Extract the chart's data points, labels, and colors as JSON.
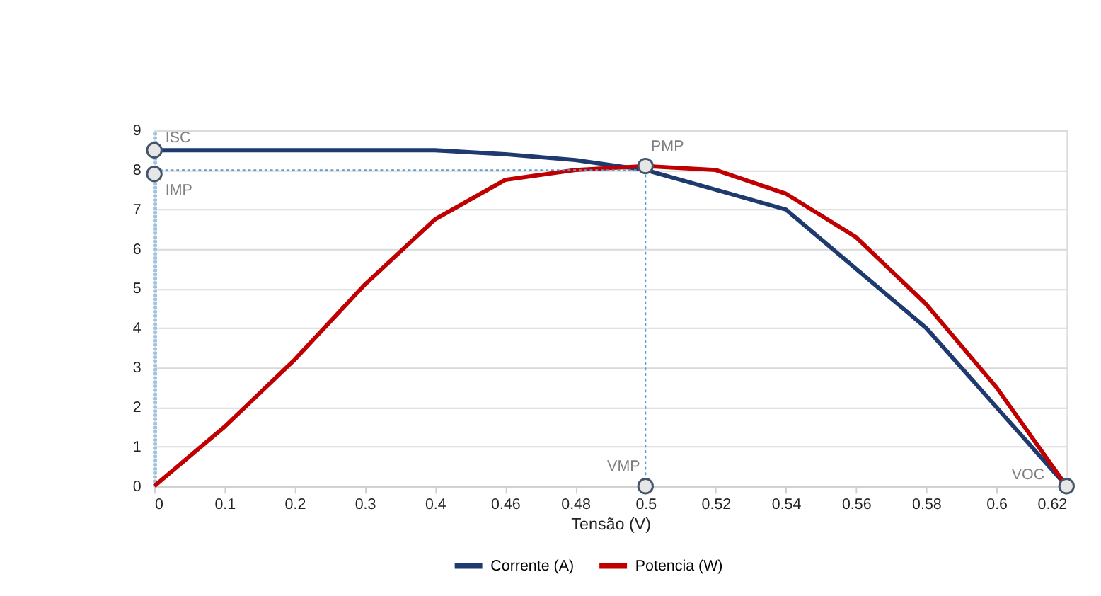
{
  "chart_data": {
    "type": "line",
    "xlabel": "Tensão (V)",
    "categories": [
      "0",
      "0.1",
      "0.2",
      "0.3",
      "0.4",
      "0.46",
      "0.48",
      "0.5",
      "0.52",
      "0.54",
      "0.56",
      "0.58",
      "0.6",
      "0.62"
    ],
    "series": [
      {
        "name": "Corrente (A)",
        "color": "#1f3a6e",
        "values": [
          8.5,
          8.5,
          8.5,
          8.5,
          8.5,
          8.4,
          8.25,
          8.0,
          7.5,
          7.0,
          5.5,
          4.0,
          2.0,
          0
        ]
      },
      {
        "name": "Potencia (W)",
        "color": "#c00000",
        "values": [
          0,
          1.5,
          3.2,
          5.1,
          6.75,
          7.75,
          8.0,
          8.1,
          8.0,
          7.4,
          6.3,
          4.6,
          2.5,
          0
        ]
      }
    ],
    "annotations": [
      {
        "text": "ISC",
        "x": "0",
        "y": 8.5
      },
      {
        "text": "IMP",
        "x": "0",
        "y": 7.9
      },
      {
        "text": "PMP",
        "x": "0.5",
        "y": 8.1
      },
      {
        "text": "VMP",
        "x": "0.5",
        "y": 0
      },
      {
        "text": "VOC",
        "x": "0.62",
        "y": 0
      }
    ],
    "ref_lines": [
      {
        "axis": "y",
        "value": 8,
        "color": "#5b9bd5",
        "line_style": "dotted"
      },
      {
        "axis": "x",
        "value": "0.5",
        "color": "#5b9bd5",
        "line_style": "dotted"
      }
    ],
    "ylim": [
      0,
      9
    ],
    "yticks": [
      0,
      1,
      2,
      3,
      4,
      5,
      6,
      7,
      8,
      9
    ],
    "grid": "y",
    "legend": "bottom",
    "line_style": "solid",
    "marker": "none"
  }
}
